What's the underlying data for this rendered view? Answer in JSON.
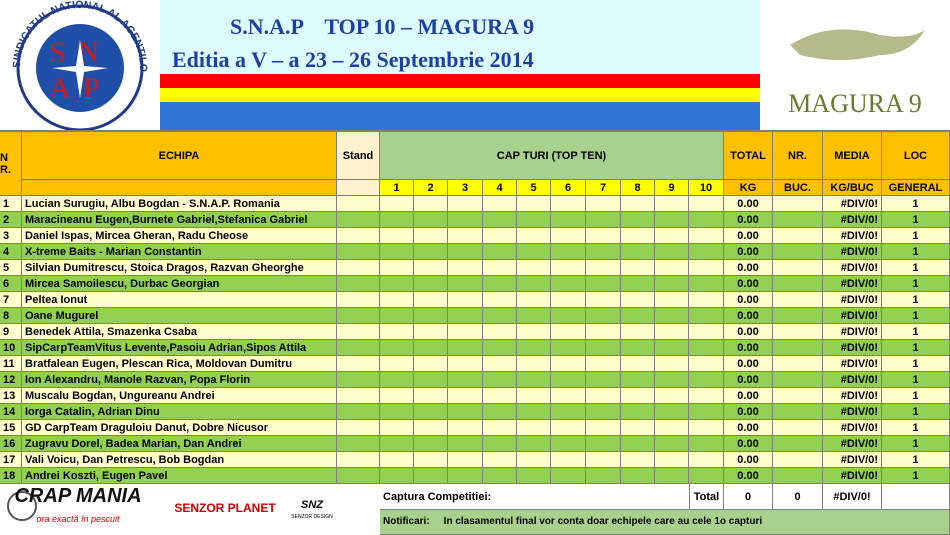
{
  "header": {
    "title": "S.N.A.P    TOP 10 – MAGURA 9",
    "subtitle": "Editia a V – a 23 – 26 Septembrie 2014",
    "logo_left": {
      "ring": "SINDICATUL NATIONAL AL AGENTILOR DE POLITIE",
      "top": "SN",
      "bottom": "AP"
    },
    "logo_right": "MAGURA 9"
  },
  "table": {
    "headers": {
      "nr": "N R.",
      "team": "ECHIPA",
      "stand": "Stand",
      "catches": "CAP TURI (TOP TEN)",
      "catch_numbers": [
        "1",
        "2",
        "3",
        "4",
        "5",
        "6",
        "7",
        "8",
        "9",
        "10"
      ],
      "total": "TOTAL",
      "total_unit": "KG",
      "count": "NR.",
      "count_unit": "BUC.",
      "average": "MEDIA",
      "average_unit": "KG/BUC",
      "rank": "LOC",
      "rank_unit": "GENERAL"
    },
    "rows": [
      [
        "1",
        "Lucian Surugiu, Albu Bogdan - S.N.A.P. Romania",
        "0.00",
        "#DIV/0!",
        "1"
      ],
      [
        "2",
        "Maracineanu Eugen,Burnete Gabriel,Stefanica Gabriel",
        "0.00",
        "#DIV/0!",
        "1"
      ],
      [
        "3",
        "Daniel Ispas,  Mircea Gheran, Radu Cheose",
        "0.00",
        "#DIV/0!",
        "1"
      ],
      [
        "4",
        "X-treme Baits - Marian Constantin",
        "0.00",
        "#DIV/0!",
        "1"
      ],
      [
        "5",
        "Silvian Dumitrescu, Stoica Dragos, Razvan Gheorghe",
        "0.00",
        "#DIV/0!",
        "1"
      ],
      [
        "6",
        "Mircea Samoilescu, Durbac Georgian",
        "0.00",
        "#DIV/0!",
        "1"
      ],
      [
        "7",
        "Peltea Ionut",
        "0.00",
        "#DIV/0!",
        "1"
      ],
      [
        "8",
        "Oane Mugurel",
        "0.00",
        "#DIV/0!",
        "1"
      ],
      [
        "9",
        "Benedek Attila, Smazenka Csaba",
        "0.00",
        "#DIV/0!",
        "1"
      ],
      [
        "10",
        "SipCarpTeamVitus Levente,Pasoiu Adrian,Sipos Attila",
        "0.00",
        "#DIV/0!",
        "1"
      ],
      [
        "11",
        "Bratfalean Eugen, Plescan Rica, Moldovan Dumitru",
        "0.00",
        "#DIV/0!",
        "1"
      ],
      [
        "12",
        "Ion Alexandru, Manole Razvan, Popa Florin",
        "0.00",
        "#DIV/0!",
        "1"
      ],
      [
        "13",
        "Muscalu Bogdan, Ungureanu Andrei",
        "0.00",
        "#DIV/0!",
        "1"
      ],
      [
        "14",
        "Iorga Catalin, Adrian Dinu",
        "0.00",
        "#DIV/0!",
        "1"
      ],
      [
        "15",
        "GD CarpTeam  Draguloiu Danut, Dobre Nicusor",
        "0.00",
        "#DIV/0!",
        "1"
      ],
      [
        "16",
        "Zugravu Dorel, Badea Marian, Dan Andrei",
        "0.00",
        "#DIV/0!",
        "1"
      ],
      [
        "17",
        "Vali Voicu, Dan Petrescu, Bob Bogdan",
        "0.00",
        "#DIV/0!",
        "1"
      ],
      [
        "18",
        "Andrei Koszti, Eugen Pavel",
        "0.00",
        "#DIV/0!",
        "1"
      ]
    ],
    "footer": {
      "label": "Captura Competitiei:",
      "total_label": "Total",
      "total_kg": "0",
      "total_count": "0",
      "average": "#DIV/0!",
      "notice_label": "Notificari:",
      "notice": "In clasamentul final vor conta doar echipele care au cele 1o capturi"
    }
  },
  "sponsors": {
    "crapmania": "CRAP MANIA",
    "crapmania_tagline": "ora exactă în pescuit",
    "senzor": "SENZOR PLANET",
    "snz": "SNZ",
    "snz_sub": "SENZOR DESIGN"
  }
}
